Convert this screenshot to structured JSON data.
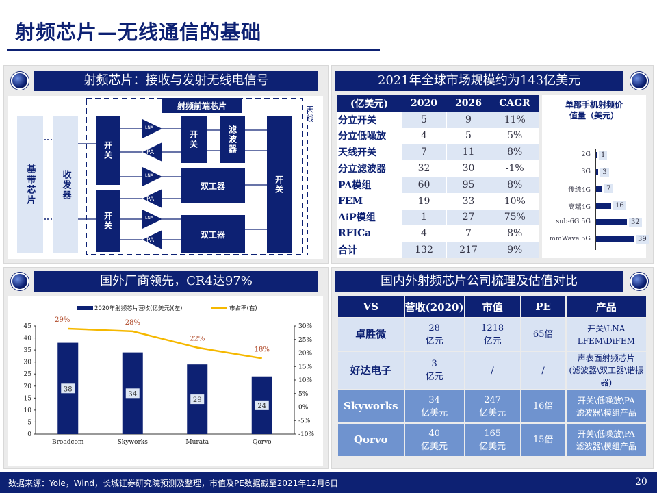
{
  "title": "射频芯片—无线通信的基础",
  "panel1": {
    "header": "射频芯片：接收与发射无线电信号",
    "frontend_label": "射频前端芯片",
    "antenna": "天线",
    "baseband": "基带芯片",
    "transceiver": "收发器",
    "switch": "开关",
    "filter": "滤波器",
    "duplexer": "双工器",
    "lna": "LNA",
    "pa": "PA"
  },
  "panel2": {
    "header": "2021年全球市场规模约为143亿美元",
    "table_headers": [
      "(亿美元)",
      "2020",
      "2026",
      "CAGR"
    ],
    "rows": [
      [
        "分立开关",
        "5",
        "9",
        "11%"
      ],
      [
        "分立低噪放",
        "4",
        "5",
        "5%"
      ],
      [
        "天线开关",
        "7",
        "11",
        "8%"
      ],
      [
        "分立滤波器",
        "32",
        "30",
        "-1%"
      ],
      [
        "PA模组",
        "60",
        "95",
        "8%"
      ],
      [
        "FEM",
        "19",
        "33",
        "10%"
      ],
      [
        "AiP模组",
        "1",
        "27",
        "75%"
      ],
      [
        "RFICa",
        "4",
        "7",
        "8%"
      ],
      [
        "合计",
        "132",
        "217",
        "9%"
      ]
    ],
    "per_phone_title": "单部手机射频价值量（美元）",
    "per_phone": [
      {
        "label": "2G",
        "value": 1
      },
      {
        "label": "3G",
        "value": 3
      },
      {
        "label": "传统4G",
        "value": 7
      },
      {
        "label": "高端4G",
        "value": 16
      },
      {
        "label": "sub-6G 5G",
        "value": 32
      },
      {
        "label": "mmWave 5G",
        "value": 39
      }
    ]
  },
  "panel3": {
    "header": "国外厂商领先，CR4达97%"
  },
  "panel4": {
    "header": "国内外射频芯片公司梳理及估值对比",
    "columns": [
      "VS",
      "营收(2020)",
      "市值",
      "PE",
      "产品"
    ],
    "rows": [
      {
        "name": "卓胜微",
        "revenue": "28\n亿元",
        "mcap": "1218\n亿元",
        "pe": "65倍",
        "product": "开关\\LNA\nLFEM\\DiFEM"
      },
      {
        "name": "好达电子",
        "revenue": "3\n亿元",
        "mcap": "/",
        "pe": "/",
        "product": "声表面射频芯片\n(滤波器\\双工器\\谐振器)"
      },
      {
        "name": "Skyworks",
        "revenue": "34\n亿美元",
        "mcap": "247\n亿美元",
        "pe": "16倍",
        "product": "开关\\低噪放\\PA\n滤波器\\模组产品"
      },
      {
        "name": "Qorvo",
        "revenue": "40\n亿美元",
        "mcap": "165\n亿美元",
        "pe": "15倍",
        "product": "开关\\低噪放\\PA\n滤波器\\模组产品"
      }
    ]
  },
  "chart_data": {
    "type": "bar",
    "categories": [
      "Broadcom",
      "Skyworks",
      "Murata",
      "Qorvo"
    ],
    "series": [
      {
        "name": "2020年射频芯片营收(亿美元)(左)",
        "type": "bar",
        "values": [
          38,
          34,
          29,
          24
        ],
        "color": "#0d2173"
      },
      {
        "name": "市占率(右)",
        "type": "line",
        "values": [
          29,
          28,
          22,
          18
        ],
        "labels": [
          "29%",
          "28%",
          "22%",
          "18%"
        ],
        "color": "#f5b800"
      }
    ],
    "y_left": {
      "min": 0,
      "max": 45,
      "ticks": [
        "0",
        "5",
        "10",
        "15",
        "20",
        "25",
        "30",
        "35",
        "40",
        "45"
      ]
    },
    "y_right": {
      "min": -10,
      "max": 30,
      "ticks": [
        "-10%",
        "-5%",
        "0%",
        "5%",
        "10%",
        "15%",
        "20%",
        "25%",
        "30%"
      ]
    },
    "legend_position": "top"
  },
  "footer": {
    "source": "数据来源：Yole，Wind，长城证券研究院预测及整理，市值及PE数据截至2021年12月6日",
    "page": "20"
  }
}
